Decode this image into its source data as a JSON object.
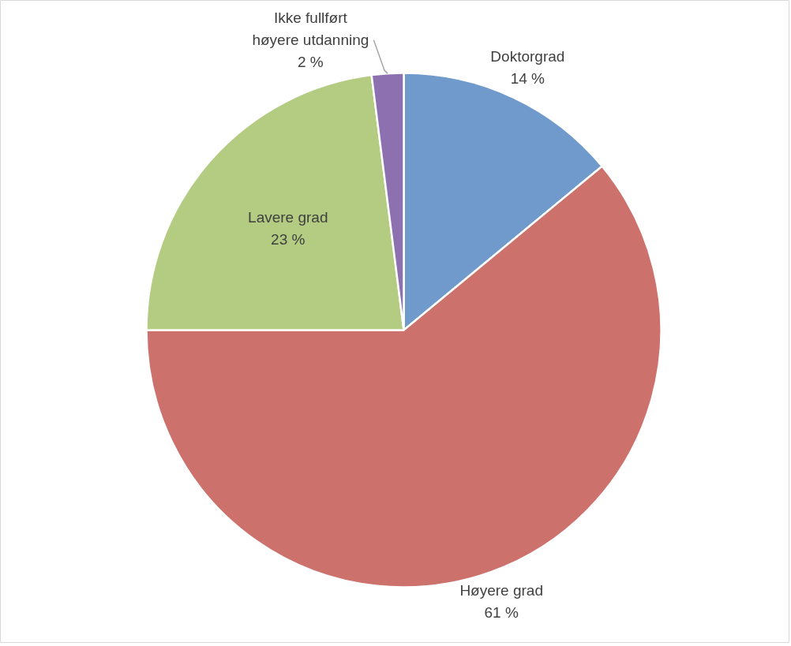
{
  "chart_data": {
    "type": "pie",
    "categories": [
      "Doktorgrad",
      "Høyere grad",
      "Lavere grad",
      "Ikke fullført høyere utdanning"
    ],
    "values": [
      14,
      61,
      23,
      2
    ],
    "colors": [
      "#6f9acb",
      "#cd716d",
      "#b3cc82",
      "#8c70b0"
    ],
    "value_labels": [
      "14 %",
      "61 %",
      "23 %",
      "2 %"
    ]
  }
}
